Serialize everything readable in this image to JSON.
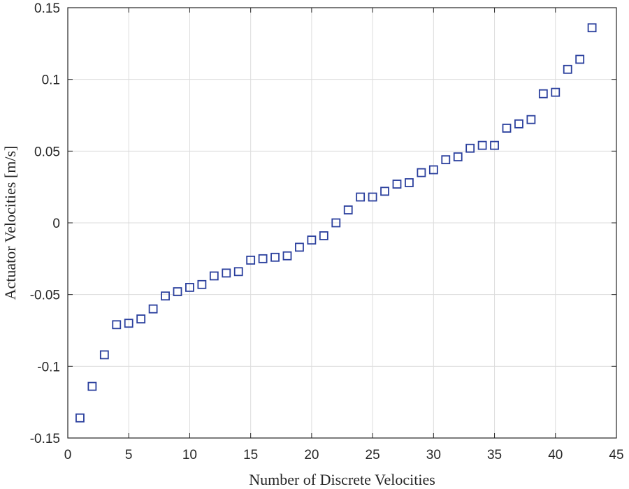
{
  "chart_data": {
    "type": "scatter",
    "xlabel": "Number of Discrete Velocities",
    "ylabel": "Actuator Velocities [m/s]",
    "xlim": [
      0,
      45
    ],
    "ylim": [
      -0.15,
      0.15
    ],
    "xticks": [
      0,
      5,
      10,
      15,
      20,
      25,
      30,
      35,
      40,
      45
    ],
    "yticks": [
      -0.15,
      -0.1,
      -0.05,
      0,
      0.05,
      0.1,
      0.15
    ],
    "xtick_labels": [
      "0",
      "5",
      "10",
      "15",
      "20",
      "25",
      "30",
      "35",
      "40",
      "45"
    ],
    "ytick_labels": [
      "-0.15",
      "-0.1",
      "-0.05",
      "0",
      "0.05",
      "0.1",
      "0.15"
    ],
    "grid": true,
    "marker": "square",
    "marker_color": "#2a3f9d",
    "series": [
      {
        "x": [
          1,
          2,
          3,
          4,
          5,
          6,
          7,
          8,
          9,
          10,
          11,
          12,
          13,
          14,
          15,
          16,
          17,
          18,
          19,
          20,
          21,
          22,
          23,
          24,
          25,
          26,
          27,
          28,
          29,
          30,
          31,
          32,
          33,
          34,
          35,
          36,
          37,
          38,
          39,
          40,
          41,
          42,
          43
        ],
        "values": [
          -0.136,
          -0.114,
          -0.092,
          -0.071,
          -0.07,
          -0.067,
          -0.06,
          -0.051,
          -0.048,
          -0.045,
          -0.043,
          -0.037,
          -0.035,
          -0.034,
          -0.026,
          -0.025,
          -0.024,
          -0.023,
          -0.017,
          -0.012,
          -0.009,
          0.0,
          0.009,
          0.018,
          0.018,
          0.022,
          0.027,
          0.028,
          0.035,
          0.037,
          0.044,
          0.046,
          0.052,
          0.054,
          0.054,
          0.066,
          0.069,
          0.072,
          0.09,
          0.091,
          0.107,
          0.114,
          0.136
        ]
      }
    ]
  }
}
